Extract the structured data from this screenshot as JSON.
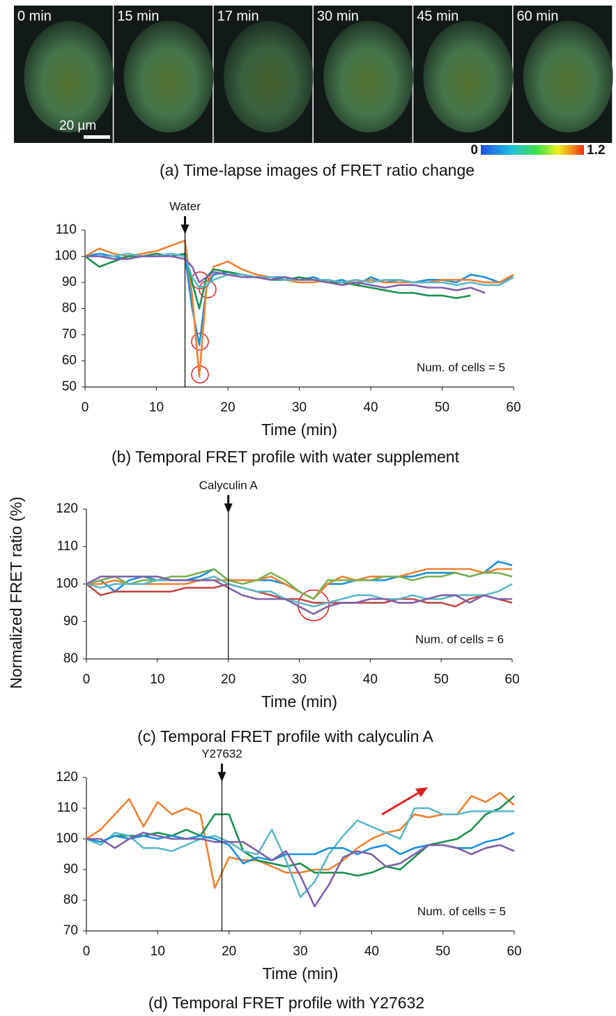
{
  "panel_a": {
    "frames": [
      "0 min",
      "15 min",
      "17 min",
      "30 min",
      "45 min",
      "60 min"
    ],
    "scale_bar": "20 µm",
    "colorbar_min": "0",
    "colorbar_max": "1.2",
    "caption": "(a) Time-lapse images of FRET ratio change"
  },
  "shared_ylabel": "Normalized FRET ratio (%)",
  "chart_data": [
    {
      "type": "line",
      "caption": "(b) Temporal FRET profile with water supplement",
      "xlabel": "Time (min)",
      "annotation": {
        "text": "Water",
        "x": 14
      },
      "note": "Num. of cells = 5",
      "xlim": [
        0,
        60
      ],
      "xticks": [
        0,
        10,
        20,
        30,
        40,
        50,
        60
      ],
      "ylim": [
        50,
        110
      ],
      "yticks": [
        50,
        60,
        70,
        80,
        90,
        100,
        110
      ],
      "x": [
        0,
        2,
        4,
        6,
        8,
        10,
        12,
        14,
        15,
        16,
        17,
        18,
        20,
        22,
        24,
        26,
        28,
        30,
        32,
        34,
        36,
        38,
        40,
        42,
        44,
        46,
        48,
        50,
        52,
        54,
        56,
        58,
        60
      ],
      "series": [
        {
          "color": "#1a8fe0",
          "values": [
            100,
            101,
            100,
            99,
            100,
            100,
            101,
            100,
            80,
            66,
            88,
            93,
            94,
            93,
            92,
            92,
            92,
            91,
            92,
            90,
            91,
            89,
            92,
            90,
            91,
            90,
            91,
            91,
            90,
            93,
            92,
            90,
            92
          ]
        },
        {
          "color": "#f08030",
          "values": [
            100,
            103,
            101,
            100,
            101,
            102,
            104,
            106,
            85,
            54,
            88,
            96,
            98,
            95,
            93,
            92,
            91,
            90,
            90,
            91,
            90,
            90,
            91,
            90,
            90,
            90,
            90,
            91,
            91,
            91,
            90,
            90,
            93
          ]
        },
        {
          "color": "#1a9050",
          "values": [
            100,
            96,
            98,
            100,
            100,
            101,
            100,
            101,
            90,
            80,
            92,
            95,
            94,
            93,
            92,
            91,
            91,
            92,
            91,
            90,
            90,
            89,
            88,
            87,
            86,
            86,
            85,
            85,
            84,
            85,
            null,
            null,
            null
          ]
        },
        {
          "color": "#5ab8c8",
          "values": [
            100,
            100,
            100,
            101,
            100,
            100,
            101,
            100,
            92,
            88,
            89,
            91,
            93,
            93,
            92,
            92,
            91,
            91,
            91,
            91,
            90,
            91,
            90,
            91,
            91,
            90,
            90,
            90,
            89,
            90,
            89,
            89,
            92
          ]
        },
        {
          "color": "#8060a8",
          "values": [
            100,
            100,
            99,
            99,
            100,
            100,
            100,
            99,
            96,
            90,
            92,
            94,
            93,
            92,
            92,
            91,
            92,
            91,
            91,
            90,
            89,
            90,
            89,
            88,
            89,
            89,
            88,
            88,
            87,
            88,
            86,
            null,
            null
          ]
        }
      ]
    },
    {
      "type": "line",
      "caption": "(c) Temporal FRET profile with calyculin A",
      "xlabel": "Time (min)",
      "annotation": {
        "text": "Calyculin A",
        "x": 20
      },
      "note": "Num. of cells = 6",
      "xlim": [
        0,
        60
      ],
      "xticks": [
        0,
        10,
        20,
        30,
        40,
        50,
        60
      ],
      "ylim": [
        80,
        120
      ],
      "yticks": [
        80,
        90,
        100,
        110,
        120
      ],
      "x": [
        0,
        2,
        4,
        6,
        8,
        10,
        12,
        14,
        16,
        18,
        20,
        22,
        24,
        26,
        28,
        30,
        32,
        34,
        36,
        38,
        40,
        42,
        44,
        46,
        48,
        50,
        52,
        54,
        56,
        58,
        60
      ],
      "series": [
        {
          "color": "#1a8fe0",
          "values": [
            100,
            101,
            98,
            101,
            102,
            101,
            101,
            101,
            102,
            104,
            101,
            101,
            101,
            101,
            100,
            98,
            96,
            100,
            100,
            101,
            101,
            101,
            102,
            102,
            103,
            103,
            103,
            102,
            103,
            106,
            105
          ]
        },
        {
          "color": "#f08030",
          "values": [
            100,
            100,
            101,
            100,
            100,
            100,
            100,
            100,
            101,
            101,
            101,
            101,
            101,
            102,
            100,
            98,
            96,
            100,
            102,
            101,
            102,
            102,
            102,
            103,
            104,
            104,
            104,
            104,
            103,
            104,
            104
          ]
        },
        {
          "color": "#7ab050",
          "values": [
            100,
            101,
            102,
            100,
            101,
            101,
            102,
            102,
            103,
            104,
            101,
            100,
            101,
            103,
            101,
            98,
            96,
            101,
            101,
            101,
            101,
            102,
            102,
            101,
            102,
            102,
            103,
            102,
            103,
            103,
            102
          ]
        },
        {
          "color": "#c04848",
          "values": [
            100,
            97,
            98,
            98,
            98,
            98,
            98,
            99,
            99,
            99,
            100,
            99,
            98,
            97,
            96,
            96,
            95,
            95,
            95,
            95,
            95,
            95,
            96,
            96,
            95,
            95,
            94,
            96,
            97,
            96,
            95
          ]
        },
        {
          "color": "#5ab8c8",
          "values": [
            100,
            99,
            100,
            100,
            100,
            101,
            101,
            101,
            101,
            102,
            100,
            99,
            98,
            98,
            96,
            95,
            94,
            95,
            96,
            97,
            97,
            96,
            96,
            97,
            96,
            96,
            97,
            97,
            97,
            98,
            100
          ]
        },
        {
          "color": "#8060a8",
          "values": [
            100,
            102,
            102,
            102,
            102,
            102,
            101,
            101,
            101,
            101,
            99,
            97,
            96,
            96,
            96,
            94,
            92,
            94,
            95,
            95,
            96,
            96,
            95,
            95,
            96,
            97,
            97,
            95,
            97,
            96,
            96
          ]
        }
      ]
    },
    {
      "type": "line",
      "caption": "(d) Temporal FRET profile with Y27632",
      "xlabel": "Time (min)",
      "annotation": {
        "text": "Y27632",
        "x": 19
      },
      "note": "Num. of cells = 5",
      "xlim": [
        0,
        60
      ],
      "xticks": [
        0,
        10,
        20,
        30,
        40,
        50,
        60
      ],
      "ylim": [
        70,
        120
      ],
      "yticks": [
        70,
        80,
        90,
        100,
        110,
        120
      ],
      "x": [
        0,
        2,
        4,
        6,
        8,
        10,
        12,
        14,
        16,
        18,
        20,
        22,
        24,
        26,
        28,
        30,
        32,
        34,
        36,
        38,
        40,
        42,
        44,
        46,
        48,
        50,
        52,
        54,
        56,
        58,
        60
      ],
      "series": [
        {
          "color": "#f08030",
          "values": [
            100,
            103,
            108,
            113,
            104,
            112,
            108,
            110,
            108,
            84,
            94,
            93,
            93,
            91,
            89,
            89,
            90,
            90,
            93,
            97,
            100,
            102,
            103,
            108,
            107,
            108,
            108,
            114,
            112,
            115,
            111
          ]
        },
        {
          "color": "#1a9050",
          "values": [
            100,
            99,
            101,
            101,
            101,
            102,
            101,
            103,
            101,
            108,
            108,
            96,
            93,
            92,
            91,
            92,
            89,
            89,
            89,
            88,
            89,
            91,
            90,
            94,
            98,
            99,
            100,
            103,
            108,
            110,
            114
          ]
        },
        {
          "color": "#5ab8c8",
          "values": [
            100,
            98,
            102,
            101,
            97,
            97,
            96,
            98,
            100,
            101,
            99,
            96,
            95,
            103,
            93,
            81,
            86,
            95,
            101,
            106,
            104,
            102,
            100,
            110,
            110,
            108,
            108,
            109,
            109,
            109,
            109
          ]
        },
        {
          "color": "#1a8fe0",
          "values": [
            100,
            99,
            101,
            100,
            101,
            100,
            101,
            100,
            101,
            100,
            98,
            92,
            94,
            93,
            95,
            95,
            95,
            97,
            97,
            95,
            97,
            98,
            95,
            97,
            98,
            98,
            97,
            97,
            99,
            100,
            102
          ]
        },
        {
          "color": "#8060a8",
          "values": [
            100,
            100,
            97,
            100,
            102,
            101,
            100,
            100,
            100,
            99,
            99,
            99,
            96,
            93,
            96,
            88,
            78,
            85,
            94,
            96,
            95,
            91,
            92,
            95,
            98,
            98,
            97,
            95,
            97,
            98,
            96
          ]
        }
      ]
    }
  ]
}
